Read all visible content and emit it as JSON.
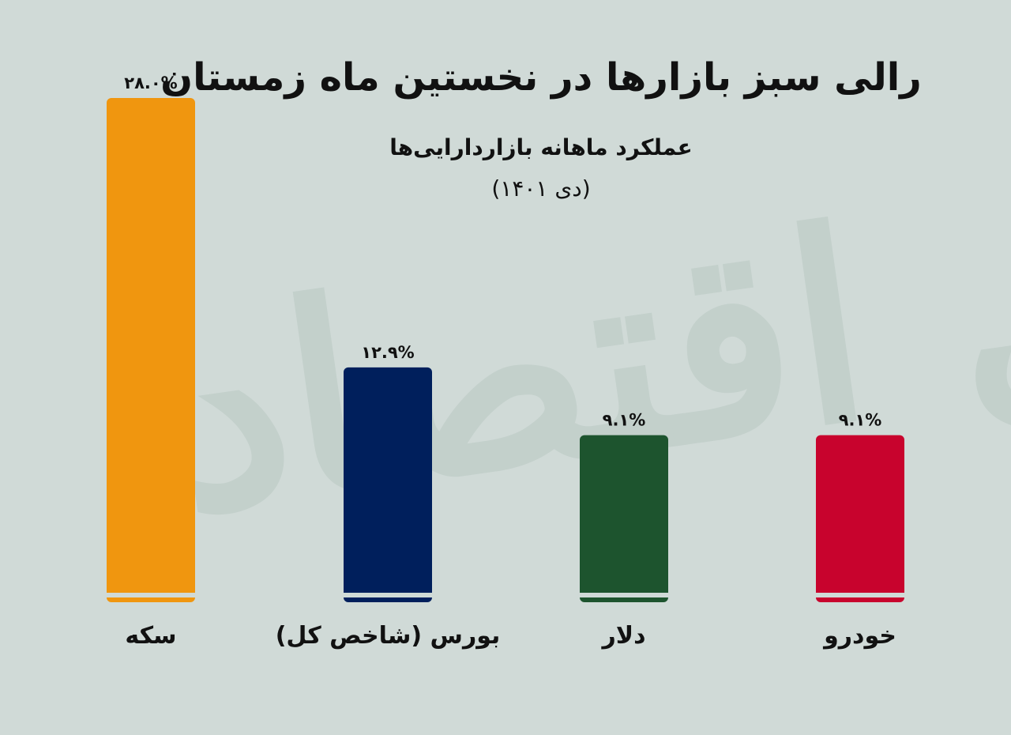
{
  "header": {
    "title": "رالی سبز بازارها در نخستین ماه زمستان",
    "subtitle": "عملکرد ماهانه بازاردارایی‌ها",
    "period": "(دی ۱۴۰۱)"
  },
  "watermark": {
    "text": "فردای اقتصاد"
  },
  "chart_data": {
    "type": "bar",
    "categories": [
      "سکه",
      "بورس (شاخص کل)",
      "دلار",
      "خودرو"
    ],
    "values": [
      28.0,
      12.9,
      9.1,
      9.1
    ],
    "value_labels": [
      "۲۸.۰%",
      "۱۲.۹%",
      "۹.۱%",
      "۹.۱%"
    ],
    "colors": [
      "#f0960f",
      "#001f5c",
      "#1d542e",
      "#c8032d"
    ],
    "ylim": [
      0,
      28.0
    ],
    "grid": false
  }
}
